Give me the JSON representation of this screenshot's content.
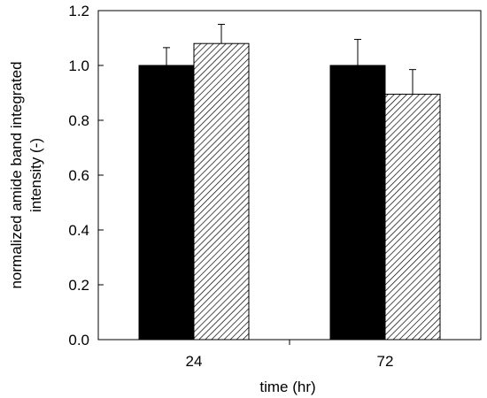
{
  "chart_data": {
    "type": "bar",
    "title": "",
    "xlabel": "time (hr)",
    "ylabel_lines": [
      "normalized amide band integrated",
      "intensity (-)"
    ],
    "categories": [
      "24",
      "72"
    ],
    "ylim": [
      0,
      1.2
    ],
    "yticks": [
      0.0,
      0.2,
      0.4,
      0.6,
      0.8,
      1.0,
      1.2
    ],
    "ytick_labels": [
      "0.0",
      "0.2",
      "0.4",
      "0.6",
      "0.8",
      "1.0",
      "1.2"
    ],
    "grid": false,
    "legend": "none",
    "series": [
      {
        "fill": "solid",
        "color": "#000000",
        "values": [
          1.0,
          1.0
        ],
        "errors": [
          0.065,
          0.095
        ]
      },
      {
        "fill": "hatched",
        "color": "#000000",
        "values": [
          1.08,
          0.895
        ],
        "errors": [
          0.07,
          0.09
        ]
      }
    ]
  }
}
